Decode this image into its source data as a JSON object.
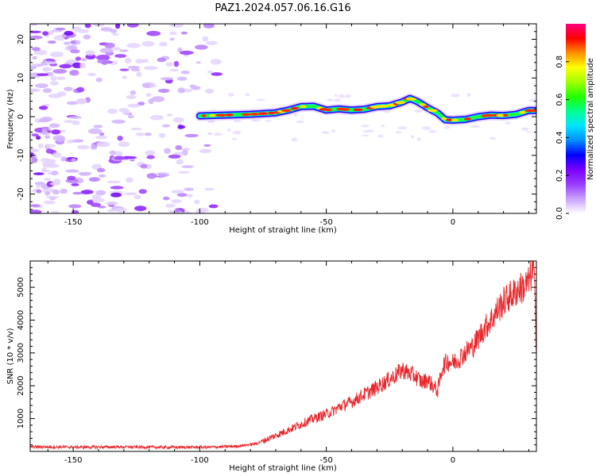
{
  "figure": {
    "title": "PAZ1.2024.057.06.16.G16"
  },
  "chart_data": [
    {
      "type": "heatmap",
      "xlabel": "Height of straight line (km)",
      "ylabel": "Frequency (Hz)",
      "xlim": [
        -167,
        33
      ],
      "ylim": [
        -25,
        24
      ],
      "xticks": [
        -150,
        -100,
        -50,
        0
      ],
      "yticks": [
        -20,
        -10,
        0,
        10,
        20
      ],
      "colorbar": {
        "label": "Normalized spectral amplitude",
        "range": [
          0.0,
          1.0
        ],
        "ticks": [
          0.0,
          0.2,
          0.4,
          0.6,
          0.8
        ],
        "tick_labels": [
          "0.0",
          "0.2",
          "0.4",
          "0.6",
          "0.8"
        ],
        "colors": [
          "#ffffff",
          "#c9a0ff",
          "#9a3cff",
          "#7a00ff",
          "#0000ff",
          "#0090ff",
          "#00e5ff",
          "#00ff90",
          "#20ff00",
          "#a0ff00",
          "#ffff00",
          "#ff9000",
          "#ff0000",
          "#ff0080"
        ]
      },
      "ridge": {
        "x": [
          -100,
          -90,
          -80,
          -70,
          -65,
          -60,
          -55,
          -50,
          -45,
          -40,
          -35,
          -30,
          -25,
          -20,
          -17,
          -14,
          -10,
          -6,
          -3,
          0,
          5,
          10,
          15,
          20,
          25,
          30,
          33
        ],
        "y": [
          0.2,
          0.4,
          0.6,
          1.0,
          1.7,
          2.6,
          2.7,
          1.7,
          2.0,
          1.7,
          1.9,
          2.6,
          2.8,
          3.8,
          4.7,
          3.9,
          2.3,
          0.9,
          -0.8,
          -0.9,
          -0.7,
          0.0,
          0.4,
          0.3,
          0.6,
          1.6,
          1.6
        ]
      },
      "noise_region": {
        "x_range": [
          -167,
          -93
        ],
        "y_range": [
          -25,
          24
        ]
      }
    },
    {
      "type": "line",
      "xlabel": "Height of straight line (km)",
      "ylabel": "SNR (10 * v/v)",
      "xlim": [
        -167,
        33
      ],
      "ylim": [
        0,
        5800
      ],
      "xticks": [
        -150,
        -100,
        -50,
        0
      ],
      "yticks": [
        1000,
        2000,
        3000,
        4000,
        5000
      ],
      "series": [
        {
          "color": "#e8262b",
          "x": [
            -167,
            -150,
            -130,
            -110,
            -95,
            -85,
            -78,
            -74,
            -71,
            -68,
            -65,
            -62,
            -58,
            -55,
            -52,
            -48,
            -45,
            -42,
            -40,
            -37,
            -34,
            -31,
            -28,
            -25,
            -22,
            -20,
            -18,
            -15,
            -12,
            -10,
            -8,
            -6,
            -4,
            -2,
            0,
            2,
            4,
            6,
            8,
            10,
            12,
            14,
            16,
            18,
            20,
            22,
            24,
            26,
            28,
            30,
            31,
            32,
            33
          ],
          "y": [
            140,
            130,
            135,
            125,
            130,
            160,
            230,
            350,
            450,
            550,
            650,
            760,
            900,
            1000,
            1080,
            1200,
            1350,
            1450,
            1500,
            1650,
            1780,
            1900,
            2050,
            2200,
            2350,
            2500,
            2400,
            2300,
            2100,
            2200,
            2000,
            1850,
            2600,
            2750,
            2700,
            2800,
            2950,
            3100,
            3200,
            3450,
            3700,
            3900,
            4100,
            4350,
            4550,
            4700,
            4800,
            4950,
            5000,
            5150,
            5400,
            5600,
            3200
          ]
        }
      ]
    }
  ]
}
